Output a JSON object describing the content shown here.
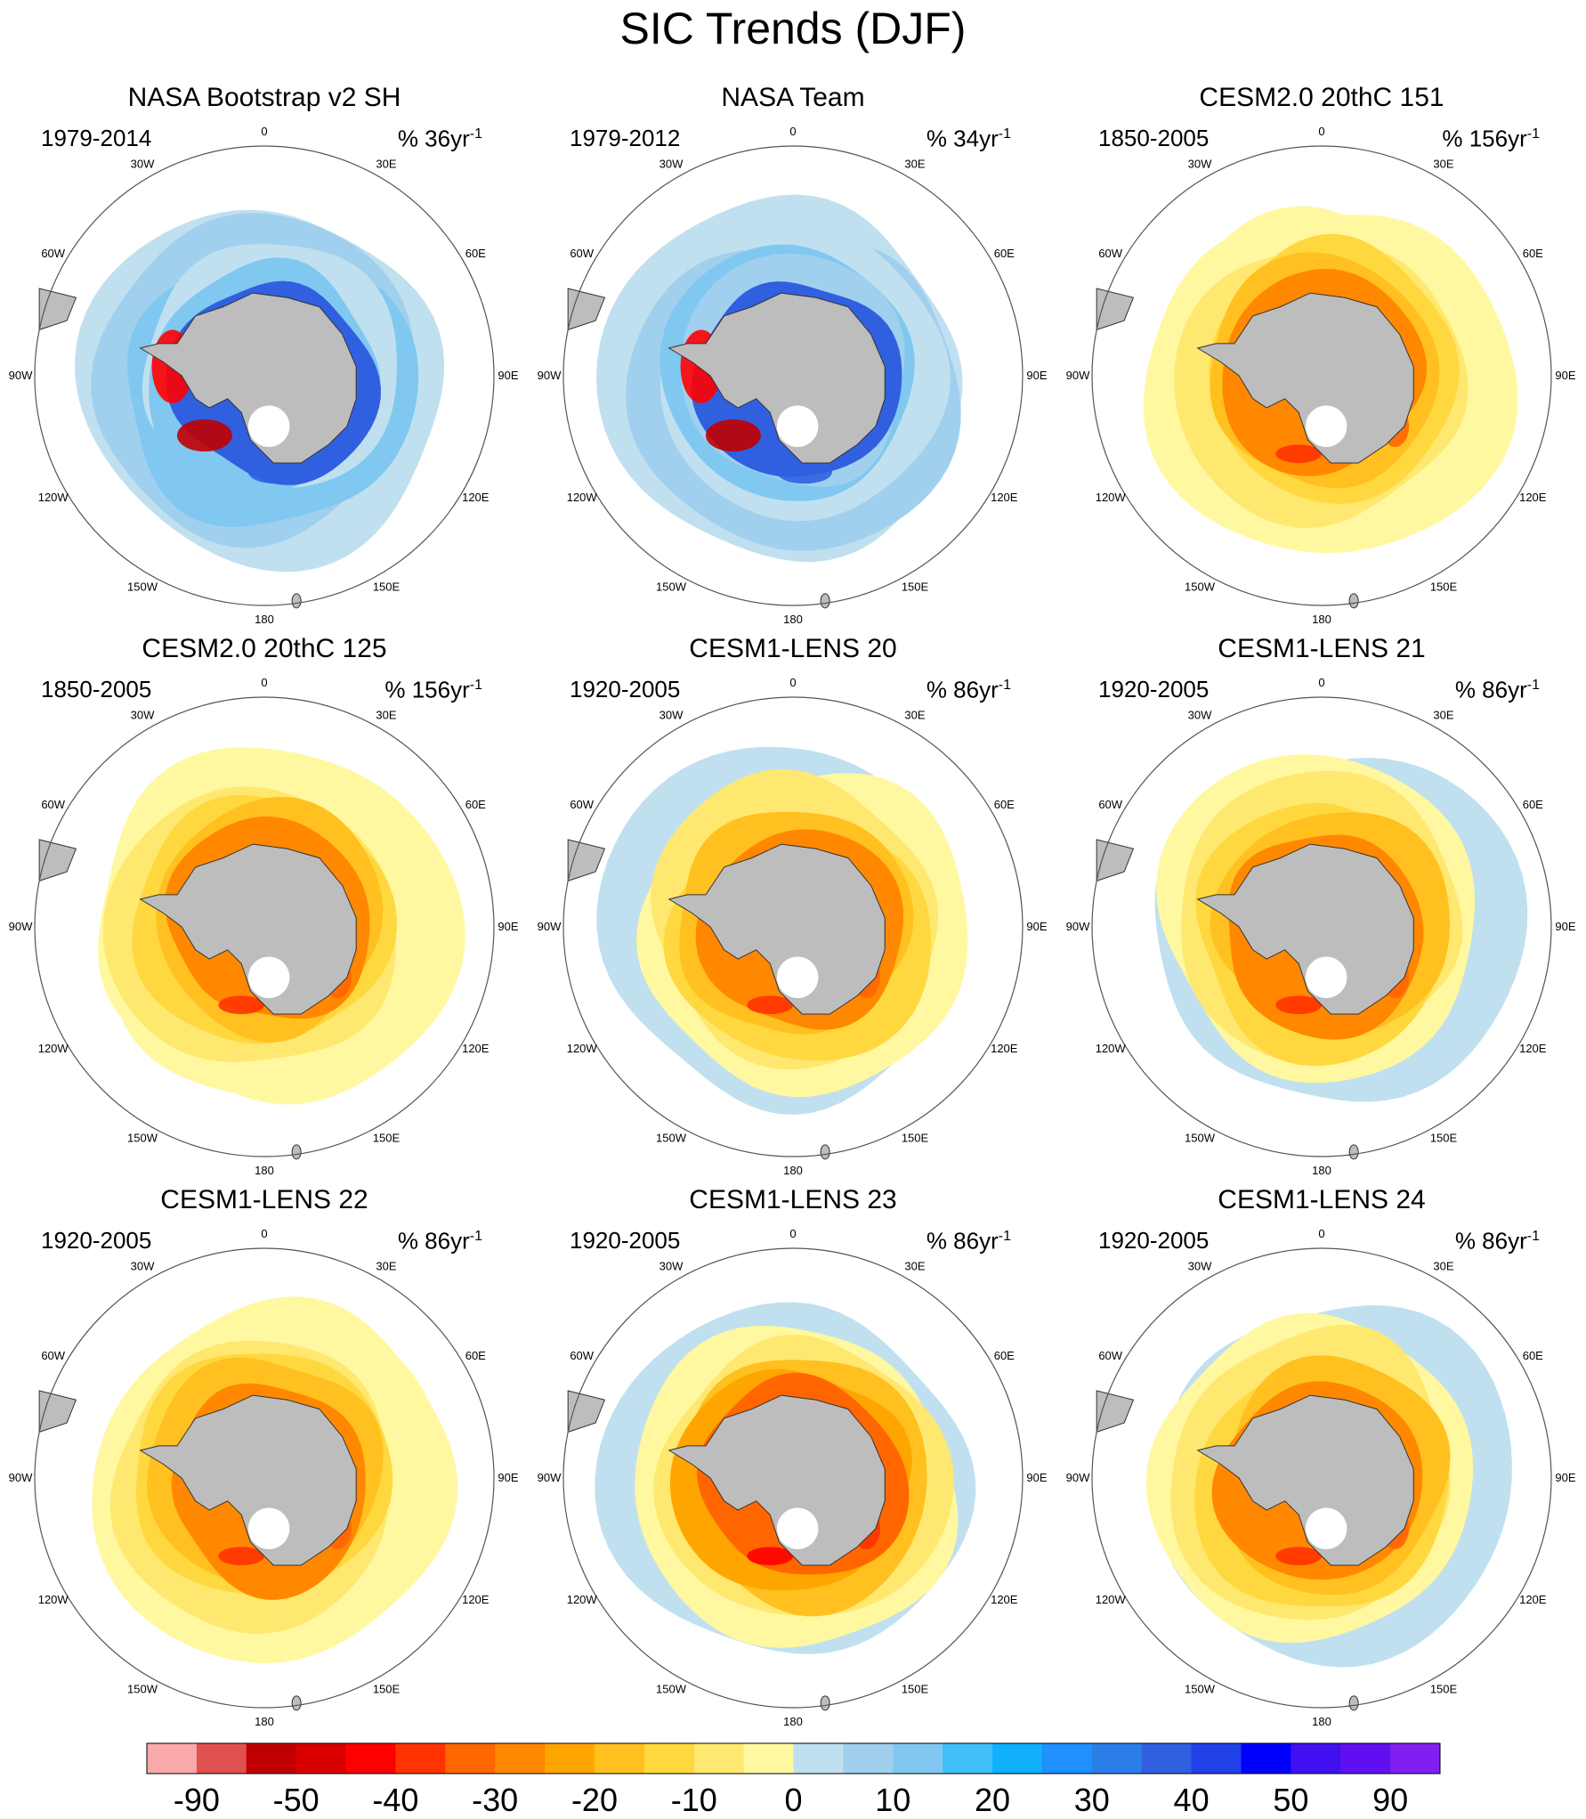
{
  "title": "SIC Trends (DJF)",
  "colors": {
    "land": "#bdbdbd",
    "ocean": "#ffffff",
    "outline": "#333333",
    "circle": "#555555"
  },
  "lon_labels": [
    "0",
    "30E",
    "60E",
    "90E",
    "120E",
    "150E",
    "180",
    "150W",
    "120W",
    "90W",
    "60W",
    "30W"
  ],
  "panels": [
    {
      "title": "NASA Bootstrap v2 SH",
      "period": "1979-2014",
      "unit_text": "% 36yr",
      "unit_exp": "-1",
      "pattern": "obs-bootstrap"
    },
    {
      "title": "NASA Team",
      "period": "1979-2012",
      "unit_text": "% 34yr",
      "unit_exp": "-1",
      "pattern": "obs-team"
    },
    {
      "title": "CESM2.0 20thC 151",
      "period": "1850-2005",
      "unit_text": "% 156yr",
      "unit_exp": "-1",
      "pattern": "model-decline"
    },
    {
      "title": "CESM2.0 20thC 125",
      "period": "1850-2005",
      "unit_text": "% 156yr",
      "unit_exp": "-1",
      "pattern": "model-decline"
    },
    {
      "title": "CESM1-LENS 20",
      "period": "1920-2005",
      "unit_text": "% 86yr",
      "unit_exp": "-1",
      "pattern": "model-mixed"
    },
    {
      "title": "CESM1-LENS 21",
      "period": "1920-2005",
      "unit_text": "% 86yr",
      "unit_exp": "-1",
      "pattern": "model-mixed"
    },
    {
      "title": "CESM1-LENS 22",
      "period": "1920-2005",
      "unit_text": "% 86yr",
      "unit_exp": "-1",
      "pattern": "model-decline"
    },
    {
      "title": "CESM1-LENS 23",
      "period": "1920-2005",
      "unit_text": "% 86yr",
      "unit_exp": "-1",
      "pattern": "model-strong"
    },
    {
      "title": "CESM1-LENS 24",
      "period": "1920-2005",
      "unit_text": "% 86yr",
      "unit_exp": "-1",
      "pattern": "model-mixed"
    }
  ],
  "chart_data": {
    "type": "heatmap",
    "projection": "south polar stereographic",
    "variable": "sea ice concentration trend (DJF)",
    "colorbar": {
      "tick_labels": [
        "-90",
        "-50",
        "-40",
        "-30",
        "-20",
        "-10",
        "0",
        "10",
        "20",
        "30",
        "40",
        "50",
        "90"
      ],
      "colors": [
        "#f9a9a9",
        "#e05050",
        "#c00000",
        "#d80000",
        "#ff0000",
        "#ff3300",
        "#ff6600",
        "#ff8800",
        "#ffa500",
        "#ffc020",
        "#ffd840",
        "#ffe870",
        "#fff8a0",
        "#c0e0f0",
        "#a0d0ee",
        "#80c8f0",
        "#40c0f8",
        "#10b0ff",
        "#1e90ff",
        "#2a7ee8",
        "#3060e0",
        "#2040e8",
        "#0000ff",
        "#4010f0",
        "#6010f0",
        "#8020f0"
      ]
    }
  }
}
